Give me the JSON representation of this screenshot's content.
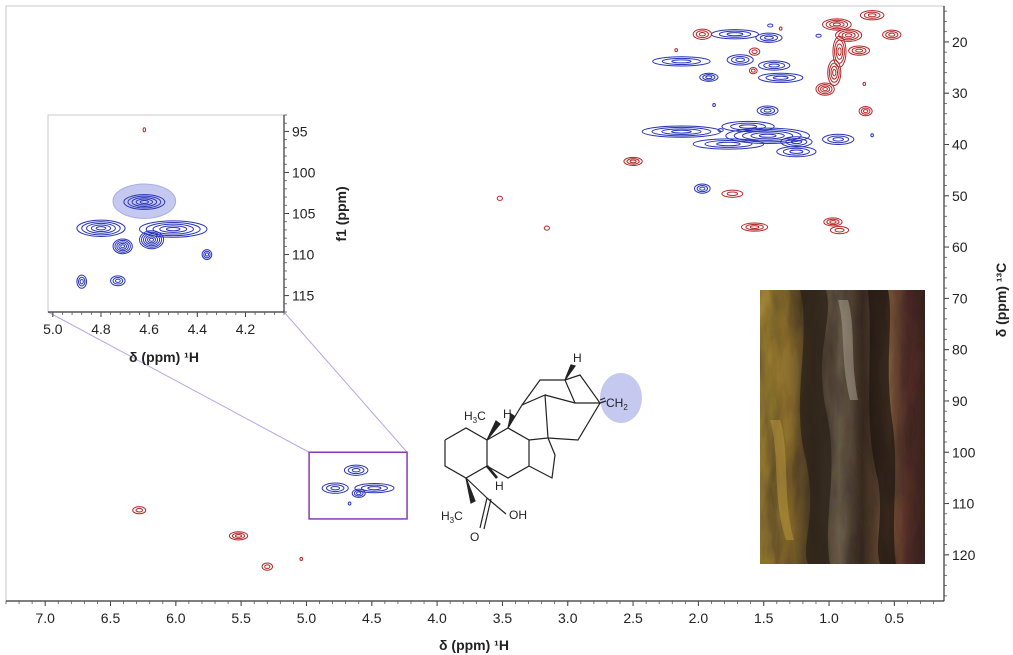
{
  "chart_data": [
    {
      "type": "scatter",
      "title": "",
      "xlabel": "δ (ppm) ¹H",
      "ylabel": "δ (ppm) ¹³C",
      "x_axis": {
        "min": 0.12,
        "max": 7.3,
        "reversed": true,
        "ticks": [
          "7.0",
          "6.5",
          "6.0",
          "5.5",
          "5.0",
          "4.5",
          "4.0",
          "3.5",
          "3.0",
          "2.5",
          "2.0",
          "1.5",
          "1.0",
          "0.5"
        ]
      },
      "y_axis": {
        "min": 13,
        "max": 129,
        "reversed": true,
        "position": "right",
        "ticks": [
          "20",
          "30",
          "40",
          "50",
          "60",
          "70",
          "80",
          "90",
          "100",
          "110",
          "120"
        ]
      },
      "grid": false,
      "series": [
        {
          "color": "#2a35b8",
          "points": [
            {
              "x": 4.62,
              "y": 103.5,
              "rx": 0.09,
              "ry": 1.0
            },
            {
              "x": 4.78,
              "y": 107.0,
              "rx": 0.1,
              "ry": 1.0
            },
            {
              "x": 4.48,
              "y": 107.0,
              "rx": 0.15,
              "ry": 0.9
            },
            {
              "x": 4.6,
              "y": 108.0,
              "rx": 0.05,
              "ry": 0.8
            },
            {
              "x": 1.72,
              "y": 18.5,
              "rx": 0.18,
              "ry": 0.9
            },
            {
              "x": 1.46,
              "y": 19.2,
              "rx": 0.1,
              "ry": 0.9
            },
            {
              "x": 2.13,
              "y": 23.8,
              "rx": 0.22,
              "ry": 0.9
            },
            {
              "x": 1.68,
              "y": 23.5,
              "rx": 0.1,
              "ry": 1.0
            },
            {
              "x": 1.42,
              "y": 24.6,
              "rx": 0.12,
              "ry": 0.9
            },
            {
              "x": 1.92,
              "y": 26.9,
              "rx": 0.07,
              "ry": 0.8
            },
            {
              "x": 1.37,
              "y": 27.0,
              "rx": 0.17,
              "ry": 0.9
            },
            {
              "x": 1.47,
              "y": 33.4,
              "rx": 0.08,
              "ry": 0.9
            },
            {
              "x": 2.13,
              "y": 37.5,
              "rx": 0.3,
              "ry": 1.1
            },
            {
              "x": 1.62,
              "y": 36.5,
              "rx": 0.2,
              "ry": 1.0
            },
            {
              "x": 1.47,
              "y": 38.3,
              "rx": 0.32,
              "ry": 1.5
            },
            {
              "x": 1.77,
              "y": 39.9,
              "rx": 0.27,
              "ry": 1.0
            },
            {
              "x": 1.25,
              "y": 39.5,
              "rx": 0.12,
              "ry": 1.0
            },
            {
              "x": 1.25,
              "y": 41.4,
              "rx": 0.15,
              "ry": 1.0
            },
            {
              "x": 0.93,
              "y": 39.0,
              "rx": 0.12,
              "ry": 1.0
            },
            {
              "x": 1.97,
              "y": 48.6,
              "rx": 0.06,
              "ry": 0.9
            },
            {
              "x": 1.88,
              "y": 32.3,
              "rx": 0.01,
              "ry": 0.3
            },
            {
              "x": 1.45,
              "y": 16.8,
              "rx": 0.02,
              "ry": 0.3
            },
            {
              "x": 1.08,
              "y": 18.8,
              "rx": 0.02,
              "ry": 0.3
            },
            {
              "x": 0.67,
              "y": 38.2,
              "rx": 0.01,
              "ry": 0.3
            },
            {
              "x": 1.83,
              "y": 37.2,
              "rx": 0.02,
              "ry": 0.3
            },
            {
              "x": 4.67,
              "y": 110.0,
              "rx": 0.01,
              "ry": 0.3
            }
          ]
        },
        {
          "color": "#b42828",
          "points": [
            {
              "x": 6.28,
              "y": 111.3,
              "rx": 0.05,
              "ry": 0.7
            },
            {
              "x": 5.52,
              "y": 116.3,
              "rx": 0.07,
              "ry": 0.8
            },
            {
              "x": 5.3,
              "y": 122.3,
              "rx": 0.04,
              "ry": 0.7
            },
            {
              "x": 5.04,
              "y": 120.8,
              "rx": 0.01,
              "ry": 0.3
            },
            {
              "x": 3.52,
              "y": 50.5,
              "rx": 0.02,
              "ry": 0.4
            },
            {
              "x": 3.16,
              "y": 56.3,
              "rx": 0.02,
              "ry": 0.4
            },
            {
              "x": 2.5,
              "y": 43.3,
              "rx": 0.07,
              "ry": 0.8
            },
            {
              "x": 1.97,
              "y": 18.5,
              "rx": 0.07,
              "ry": 1.0
            },
            {
              "x": 1.57,
              "y": 21.9,
              "rx": 0.04,
              "ry": 0.7
            },
            {
              "x": 1.58,
              "y": 25.6,
              "rx": 0.03,
              "ry": 0.6
            },
            {
              "x": 1.74,
              "y": 49.6,
              "rx": 0.08,
              "ry": 0.7
            },
            {
              "x": 1.57,
              "y": 56.1,
              "rx": 0.1,
              "ry": 0.8
            },
            {
              "x": 0.97,
              "y": 55.1,
              "rx": 0.07,
              "ry": 0.8
            },
            {
              "x": 0.92,
              "y": 56.7,
              "rx": 0.07,
              "ry": 0.7
            },
            {
              "x": 0.94,
              "y": 16.6,
              "rx": 0.11,
              "ry": 1.1
            },
            {
              "x": 0.67,
              "y": 14.8,
              "rx": 0.09,
              "ry": 0.9
            },
            {
              "x": 0.85,
              "y": 18.7,
              "rx": 0.1,
              "ry": 1.2
            },
            {
              "x": 0.92,
              "y": 21.9,
              "rx": 0.05,
              "ry": 3.0
            },
            {
              "x": 0.77,
              "y": 21.7,
              "rx": 0.08,
              "ry": 0.9
            },
            {
              "x": 0.96,
              "y": 26.0,
              "rx": 0.05,
              "ry": 2.5
            },
            {
              "x": 1.03,
              "y": 29.2,
              "rx": 0.07,
              "ry": 1.2
            },
            {
              "x": 0.72,
              "y": 33.5,
              "rx": 0.05,
              "ry": 0.9
            },
            {
              "x": 0.52,
              "y": 18.6,
              "rx": 0.07,
              "ry": 0.9
            },
            {
              "x": 1.37,
              "y": 17.4,
              "rx": 0.01,
              "ry": 0.3
            },
            {
              "x": 2.17,
              "y": 21.6,
              "rx": 0.01,
              "ry": 0.3
            },
            {
              "x": 0.73,
              "y": 28.2,
              "rx": 0.01,
              "ry": 0.3
            }
          ]
        }
      ],
      "highlight_box": {
        "x_range": [
          4.23,
          4.98
        ],
        "y_range": [
          100,
          113
        ],
        "color": "#8a3ab9"
      }
    },
    {
      "type": "scatter",
      "title": "",
      "xlabel": "δ (ppm) ¹H",
      "ylabel": "f1 (ppm)",
      "x_axis": {
        "min": 4.04,
        "max": 5.02,
        "reversed": true,
        "ticks": [
          "5.0",
          "4.8",
          "4.6",
          "4.4",
          "4.2"
        ]
      },
      "y_axis": {
        "min": 93,
        "max": 117,
        "reversed": true,
        "position": "right",
        "ticks": [
          "95",
          "100",
          "105",
          "110",
          "115"
        ]
      },
      "grid": false,
      "highlight": {
        "x": 4.62,
        "y": 103.5,
        "rx": 0.13,
        "ry": 2.1,
        "color": "#c5c8ef"
      },
      "series": [
        {
          "color": "#2a35b8",
          "points": [
            {
              "x": 4.62,
              "y": 103.6,
              "rx": 0.085,
              "ry": 0.9
            },
            {
              "x": 4.8,
              "y": 106.8,
              "rx": 0.1,
              "ry": 1.0
            },
            {
              "x": 4.5,
              "y": 106.9,
              "rx": 0.14,
              "ry": 1.0
            },
            {
              "x": 4.59,
              "y": 108.2,
              "rx": 0.05,
              "ry": 1.1
            },
            {
              "x": 4.71,
              "y": 109.0,
              "rx": 0.04,
              "ry": 0.9
            },
            {
              "x": 4.36,
              "y": 110.0,
              "rx": 0.02,
              "ry": 0.6
            },
            {
              "x": 4.88,
              "y": 113.3,
              "rx": 0.02,
              "ry": 0.8
            },
            {
              "x": 4.73,
              "y": 113.2,
              "rx": 0.03,
              "ry": 0.6
            }
          ]
        },
        {
          "color": "#b42828",
          "points": [
            {
              "x": 4.62,
              "y": 94.8,
              "rx": 0.004,
              "ry": 0.25
            }
          ]
        }
      ]
    }
  ],
  "molecule": {
    "labels": {
      "h_top": "H",
      "ch2": "CH",
      "ch2_sub": "2",
      "h3c_top": "H",
      "h3c_top_sub": "3",
      "h3c_top_c": "C",
      "h_mid": "H",
      "h_bottom": "H",
      "h3c_bot": "H",
      "h3c_bot_sub": "3",
      "h3c_bot_c": "C",
      "oh": "OH",
      "o": "O"
    },
    "highlight_color": "#c5c8ef"
  },
  "photo": {
    "description_icon": "tree-bark-photo"
  }
}
